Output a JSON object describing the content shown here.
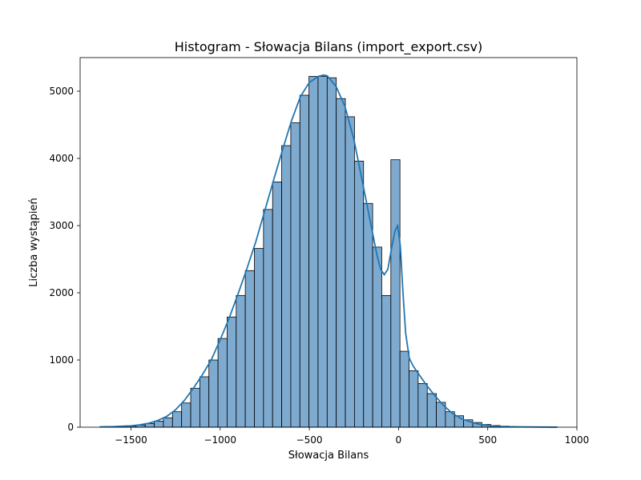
{
  "chart_data": {
    "type": "bar",
    "title": "Histogram - Słowacja Bilans (import_export.csv)",
    "xlabel": "Słowacja Bilans",
    "ylabel": "Liczba wystąpień",
    "xlim": [
      -1785,
      1000
    ],
    "ylim": [
      0,
      5500
    ],
    "xticks": [
      -1500,
      -1000,
      -500,
      0,
      500,
      1000
    ],
    "yticks": [
      0,
      1000,
      2000,
      3000,
      4000,
      5000
    ],
    "grid": false,
    "bar_color": "#7eaad0",
    "line_color": "#1f77b4",
    "bins": [
      {
        "x0": -1675,
        "x1": -1624,
        "value": 2
      },
      {
        "x0": -1624,
        "x1": -1573,
        "value": 4
      },
      {
        "x0": -1573,
        "x1": -1522,
        "value": 8
      },
      {
        "x0": -1522,
        "x1": -1471,
        "value": 15
      },
      {
        "x0": -1471,
        "x1": -1420,
        "value": 30
      },
      {
        "x0": -1420,
        "x1": -1369,
        "value": 55
      },
      {
        "x0": -1369,
        "x1": -1318,
        "value": 90
      },
      {
        "x0": -1318,
        "x1": -1267,
        "value": 140
      },
      {
        "x0": -1267,
        "x1": -1216,
        "value": 230
      },
      {
        "x0": -1216,
        "x1": -1165,
        "value": 360
      },
      {
        "x0": -1165,
        "x1": -1114,
        "value": 580
      },
      {
        "x0": -1114,
        "x1": -1063,
        "value": 750
      },
      {
        "x0": -1063,
        "x1": -1012,
        "value": 1000
      },
      {
        "x0": -1012,
        "x1": -961,
        "value": 1320
      },
      {
        "x0": -961,
        "x1": -910,
        "value": 1640
      },
      {
        "x0": -910,
        "x1": -859,
        "value": 1960
      },
      {
        "x0": -859,
        "x1": -808,
        "value": 2330
      },
      {
        "x0": -808,
        "x1": -757,
        "value": 2660
      },
      {
        "x0": -757,
        "x1": -706,
        "value": 3240
      },
      {
        "x0": -706,
        "x1": -655,
        "value": 3650
      },
      {
        "x0": -655,
        "x1": -604,
        "value": 4190
      },
      {
        "x0": -604,
        "x1": -553,
        "value": 4530
      },
      {
        "x0": -553,
        "x1": -502,
        "value": 4940
      },
      {
        "x0": -502,
        "x1": -451,
        "value": 5220
      },
      {
        "x0": -451,
        "x1": -400,
        "value": 5220
      },
      {
        "x0": -400,
        "x1": -349,
        "value": 5200
      },
      {
        "x0": -349,
        "x1": -298,
        "value": 4890
      },
      {
        "x0": -298,
        "x1": -247,
        "value": 4620
      },
      {
        "x0": -247,
        "x1": -196,
        "value": 3960
      },
      {
        "x0": -196,
        "x1": -145,
        "value": 3330
      },
      {
        "x0": -145,
        "x1": -94,
        "value": 2680
      },
      {
        "x0": -94,
        "x1": -43,
        "value": 1960
      },
      {
        "x0": -43,
        "x1": 8,
        "value": 3980
      },
      {
        "x0": 8,
        "x1": 59,
        "value": 1130
      },
      {
        "x0": 59,
        "x1": 110,
        "value": 840
      },
      {
        "x0": 110,
        "x1": 161,
        "value": 650
      },
      {
        "x0": 161,
        "x1": 212,
        "value": 500
      },
      {
        "x0": 212,
        "x1": 263,
        "value": 370
      },
      {
        "x0": 263,
        "x1": 314,
        "value": 230
      },
      {
        "x0": 314,
        "x1": 365,
        "value": 170
      },
      {
        "x0": 365,
        "x1": 416,
        "value": 110
      },
      {
        "x0": 416,
        "x1": 467,
        "value": 70
      },
      {
        "x0": 467,
        "x1": 518,
        "value": 40
      },
      {
        "x0": 518,
        "x1": 569,
        "value": 25
      },
      {
        "x0": 569,
        "x1": 620,
        "value": 15
      },
      {
        "x0": 620,
        "x1": 671,
        "value": 8
      },
      {
        "x0": 671,
        "x1": 722,
        "value": 5
      },
      {
        "x0": 722,
        "x1": 773,
        "value": 3
      },
      {
        "x0": 773,
        "x1": 824,
        "value": 2
      },
      {
        "x0": 824,
        "x1": 890,
        "value": 1
      }
    ],
    "kde": [
      [
        -1675,
        5
      ],
      [
        -1600,
        8
      ],
      [
        -1500,
        20
      ],
      [
        -1450,
        35
      ],
      [
        -1400,
        60
      ],
      [
        -1350,
        100
      ],
      [
        -1300,
        160
      ],
      [
        -1250,
        260
      ],
      [
        -1200,
        400
      ],
      [
        -1150,
        580
      ],
      [
        -1100,
        780
      ],
      [
        -1050,
        1000
      ],
      [
        -1000,
        1300
      ],
      [
        -950,
        1620
      ],
      [
        -900,
        1980
      ],
      [
        -850,
        2360
      ],
      [
        -800,
        2760
      ],
      [
        -750,
        3220
      ],
      [
        -700,
        3680
      ],
      [
        -650,
        4130
      ],
      [
        -600,
        4560
      ],
      [
        -550,
        4920
      ],
      [
        -500,
        5130
      ],
      [
        -450,
        5220
      ],
      [
        -420,
        5240
      ],
      [
        -400,
        5230
      ],
      [
        -350,
        5070
      ],
      [
        -300,
        4770
      ],
      [
        -250,
        4280
      ],
      [
        -200,
        3620
      ],
      [
        -150,
        2950
      ],
      [
        -120,
        2550
      ],
      [
        -100,
        2350
      ],
      [
        -80,
        2270
      ],
      [
        -60,
        2350
      ],
      [
        -40,
        2650
      ],
      [
        -20,
        2920
      ],
      [
        -5,
        3000
      ],
      [
        10,
        2700
      ],
      [
        25,
        2000
      ],
      [
        40,
        1400
      ],
      [
        60,
        1030
      ],
      [
        80,
        920
      ],
      [
        100,
        840
      ],
      [
        150,
        650
      ],
      [
        200,
        480
      ],
      [
        250,
        330
      ],
      [
        300,
        210
      ],
      [
        350,
        130
      ],
      [
        400,
        80
      ],
      [
        450,
        45
      ],
      [
        500,
        25
      ],
      [
        550,
        12
      ],
      [
        600,
        7
      ],
      [
        700,
        4
      ],
      [
        800,
        2
      ],
      [
        890,
        1
      ]
    ]
  }
}
